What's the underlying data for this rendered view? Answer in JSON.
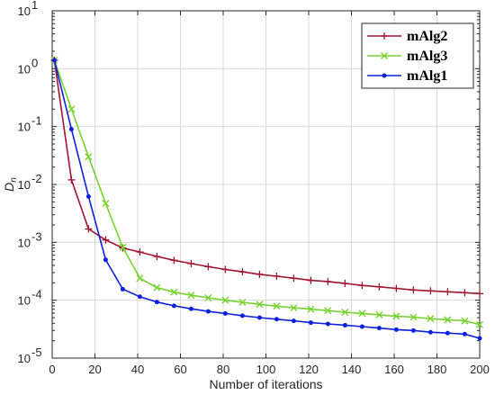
{
  "chart_data": {
    "type": "line",
    "xlabel": "Number of iterations",
    "ylabel": "D",
    "ylabel_sub": "n",
    "xlim": [
      0,
      200
    ],
    "ylim": [
      1e-05,
      10
    ],
    "y_scale": "log",
    "grid": true,
    "legend_position": "top-right",
    "x_ticks": [
      0,
      20,
      40,
      60,
      80,
      100,
      120,
      140,
      160,
      180,
      200
    ],
    "y_ticks": [
      {
        "value": 1e-05,
        "base": "10",
        "exp": "-5"
      },
      {
        "value": 0.0001,
        "base": "10",
        "exp": "-4"
      },
      {
        "value": 0.001,
        "base": "10",
        "exp": "-3"
      },
      {
        "value": 0.01,
        "base": "10",
        "exp": "-2"
      },
      {
        "value": 0.1,
        "base": "10",
        "exp": "-1"
      },
      {
        "value": 1,
        "base": "10",
        "exp": "0"
      },
      {
        "value": 10,
        "base": "10",
        "exp": "1"
      }
    ],
    "series": [
      {
        "name": "mAlg2",
        "color": "#A2142F",
        "marker": "plus",
        "x": [
          1,
          9,
          17,
          25,
          33,
          41,
          49,
          57,
          65,
          73,
          81,
          89,
          97,
          105,
          113,
          121,
          129,
          137,
          145,
          153,
          161,
          169,
          177,
          185,
          193,
          200
        ],
        "y": [
          1.4,
          0.012,
          0.0017,
          0.0011,
          0.0008,
          0.00068,
          0.00057,
          0.00049,
          0.00043,
          0.00038,
          0.00034,
          0.00031,
          0.00028,
          0.00026,
          0.00024,
          0.00022,
          0.00021,
          0.000195,
          0.00018,
          0.00017,
          0.00016,
          0.00015,
          0.000145,
          0.00014,
          0.000135,
          0.00013
        ]
      },
      {
        "name": "mAlg3",
        "color": "#77D32F",
        "marker": "x",
        "x": [
          1,
          9,
          17,
          25,
          33,
          41,
          49,
          57,
          65,
          73,
          81,
          89,
          97,
          105,
          113,
          121,
          129,
          137,
          145,
          153,
          161,
          169,
          177,
          185,
          193,
          200
        ],
        "y": [
          1.4,
          0.2,
          0.03,
          0.0047,
          0.00082,
          0.00024,
          0.000165,
          0.000138,
          0.000122,
          0.00011,
          0.0001,
          9.2e-05,
          8.5e-05,
          7.9e-05,
          7.4e-05,
          7e-05,
          6.6e-05,
          6.2e-05,
          5.9e-05,
          5.6e-05,
          5.3e-05,
          5.1e-05,
          4.8e-05,
          4.6e-05,
          4.4e-05,
          3.8e-05
        ]
      },
      {
        "name": "mAlg1",
        "color": "#0C20E0",
        "marker": "dot",
        "x": [
          1,
          9,
          17,
          25,
          33,
          41,
          49,
          57,
          65,
          73,
          81,
          89,
          97,
          105,
          113,
          121,
          129,
          137,
          145,
          153,
          161,
          169,
          177,
          185,
          193,
          200
        ],
        "y": [
          1.4,
          0.09,
          0.0062,
          0.0005,
          0.000155,
          0.000115,
          9.3e-05,
          8e-05,
          7.1e-05,
          6.4e-05,
          5.9e-05,
          5.4e-05,
          5e-05,
          4.7e-05,
          4.4e-05,
          4.1e-05,
          3.9e-05,
          3.7e-05,
          3.5e-05,
          3.3e-05,
          3.1e-05,
          3e-05,
          2.8e-05,
          2.7e-05,
          2.6e-05,
          2.2e-05
        ]
      }
    ]
  }
}
